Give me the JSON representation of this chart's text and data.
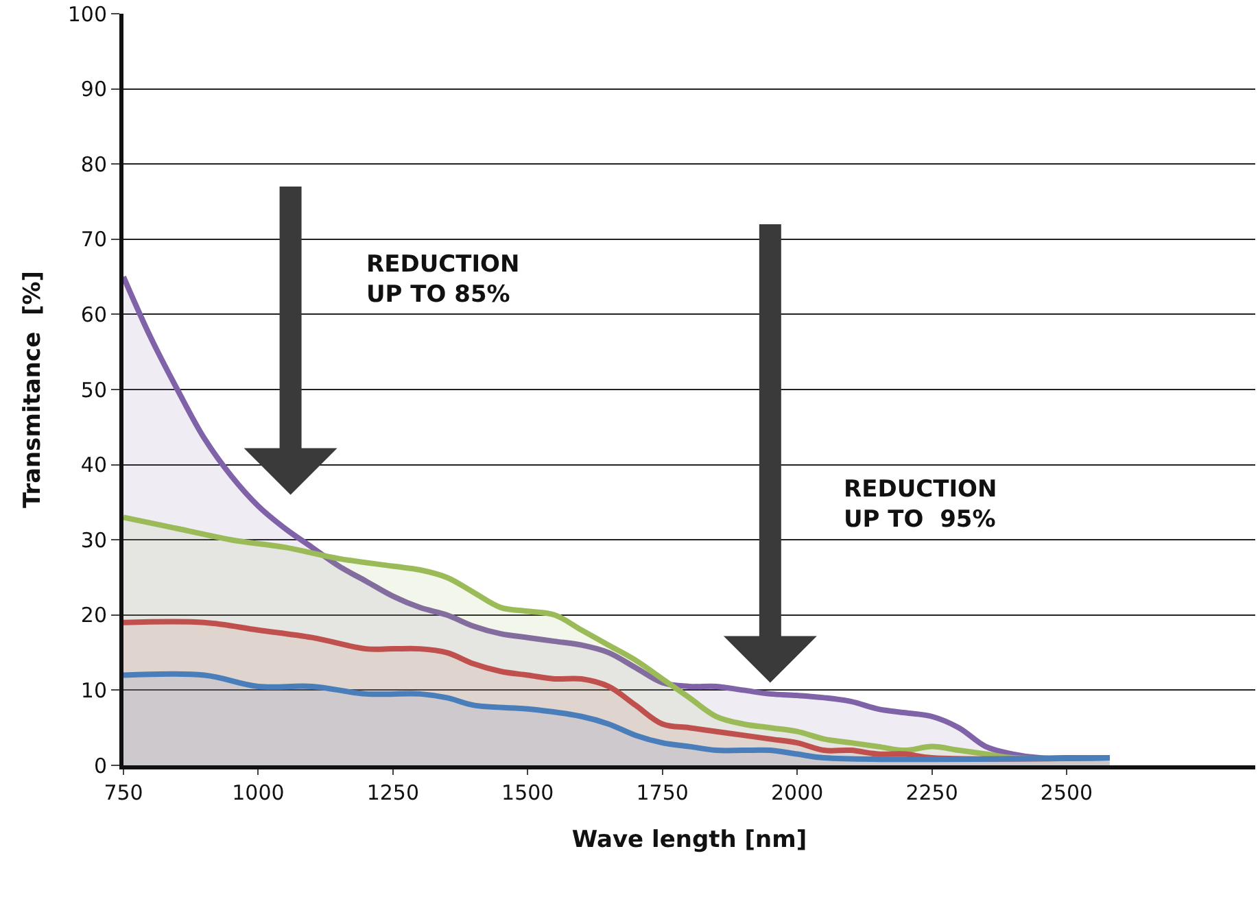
{
  "chart_data": {
    "type": "area",
    "xlabel": "Wave length [nm]",
    "ylabel": "Transmitance  [%]",
    "xlim": [
      750,
      2850
    ],
    "xticks": [
      750,
      1000,
      1250,
      1500,
      1750,
      2000,
      2250,
      2500
    ],
    "ylim": [
      0,
      100
    ],
    "yticks": [
      0,
      10,
      20,
      30,
      40,
      50,
      60,
      70,
      80,
      90,
      100
    ],
    "grid": "y",
    "legend": false,
    "annotations": [
      "REDUCTION\nUP TO 85%",
      "REDUCTION\nUP TO  95%"
    ],
    "series": [
      {
        "color": "#7f62a8",
        "x": [
          750,
          800,
          850,
          900,
          950,
          1000,
          1050,
          1100,
          1150,
          1200,
          1250,
          1300,
          1350,
          1400,
          1450,
          1500,
          1550,
          1600,
          1650,
          1700,
          1750,
          1800,
          1850,
          1900,
          1950,
          2000,
          2050,
          2100,
          2150,
          2200,
          2250,
          2300,
          2350,
          2400,
          2450,
          2500,
          2580
        ],
        "values": [
          65,
          57,
          50,
          43.5,
          38.5,
          34.5,
          31.5,
          29,
          26.5,
          24.5,
          22.5,
          21,
          20,
          18.5,
          17.5,
          17,
          16.5,
          16,
          15,
          13,
          11,
          10.5,
          10.5,
          10,
          9.5,
          9.3,
          9,
          8.5,
          7.5,
          7,
          6.5,
          5,
          2.5,
          1.5,
          1,
          1,
          1
        ]
      },
      {
        "color": "#9bbb59",
        "x": [
          750,
          850,
          950,
          1050,
          1150,
          1250,
          1300,
          1350,
          1400,
          1450,
          1500,
          1550,
          1600,
          1650,
          1700,
          1750,
          1800,
          1850,
          1900,
          1950,
          2000,
          2050,
          2100,
          2150,
          2200,
          2250,
          2300,
          2350,
          2400,
          2580
        ],
        "values": [
          33,
          31.5,
          30,
          29,
          27.5,
          26.5,
          26,
          25,
          23,
          21,
          20.5,
          20,
          18,
          16,
          14,
          11.5,
          9,
          6.5,
          5.5,
          5,
          4.5,
          3.5,
          3,
          2.5,
          2,
          2.5,
          2,
          1.5,
          1,
          1
        ]
      },
      {
        "color": "#c0504d",
        "x": [
          750,
          900,
          1000,
          1100,
          1200,
          1250,
          1300,
          1350,
          1400,
          1450,
          1500,
          1550,
          1600,
          1650,
          1700,
          1750,
          1800,
          1850,
          1900,
          1950,
          2000,
          2050,
          2100,
          2150,
          2200,
          2250,
          2580
        ],
        "values": [
          19,
          19,
          18,
          17,
          15.5,
          15.5,
          15.5,
          15,
          13.5,
          12.5,
          12,
          11.5,
          11.5,
          10.5,
          8,
          5.5,
          5,
          4.5,
          4,
          3.5,
          3,
          2,
          2,
          1.5,
          1.5,
          1,
          1
        ]
      },
      {
        "color": "#4a7ebb",
        "x": [
          750,
          900,
          1000,
          1100,
          1200,
          1300,
          1350,
          1400,
          1500,
          1600,
          1650,
          1700,
          1750,
          1800,
          1850,
          1900,
          1950,
          2000,
          2050,
          2580
        ],
        "values": [
          12,
          12,
          10.5,
          10.5,
          9.5,
          9.5,
          9,
          8,
          7.5,
          6.5,
          5.5,
          4,
          3,
          2.5,
          2,
          2,
          2,
          1.5,
          1,
          1
        ]
      }
    ]
  }
}
